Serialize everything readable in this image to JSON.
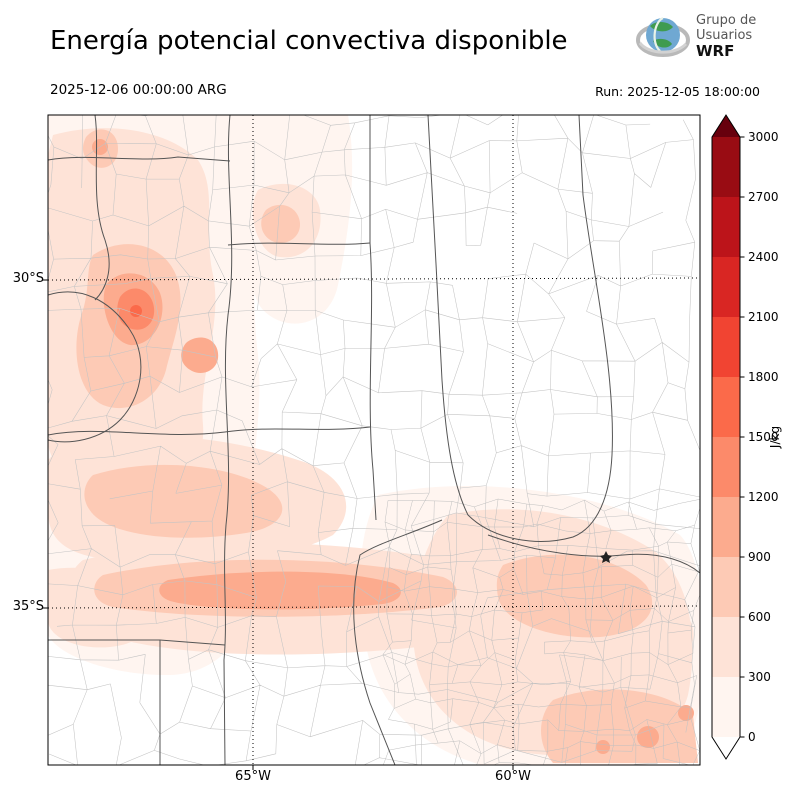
{
  "header": {
    "title": "Energía potencial convectiva disponible",
    "logo": {
      "line1": "Grupo de",
      "line2": "Usuarios",
      "line3": "WRF"
    },
    "valid_time": "2025-12-06 00:00:00 ARG",
    "run_label": "Run: 2025-12-05 18:00:00"
  },
  "map": {
    "lat_ticks": [
      "30°S",
      "35°S"
    ],
    "lon_ticks": [
      "65°W",
      "60°W"
    ]
  },
  "colorbar": {
    "unit": "J/kg",
    "ticks": [
      "0",
      "300",
      "600",
      "900",
      "1200",
      "1500",
      "1800",
      "2100",
      "2400",
      "2700",
      "3000"
    ],
    "segment_colors": [
      "#fff5f0",
      "#fee3d7",
      "#fdcab5",
      "#fcab8e",
      "#fc8a6a",
      "#fb6a4a",
      "#f14432",
      "#d92623",
      "#bc141a",
      "#990c13"
    ],
    "over_color": "#67000d",
    "under_color": "#ffffff"
  }
}
